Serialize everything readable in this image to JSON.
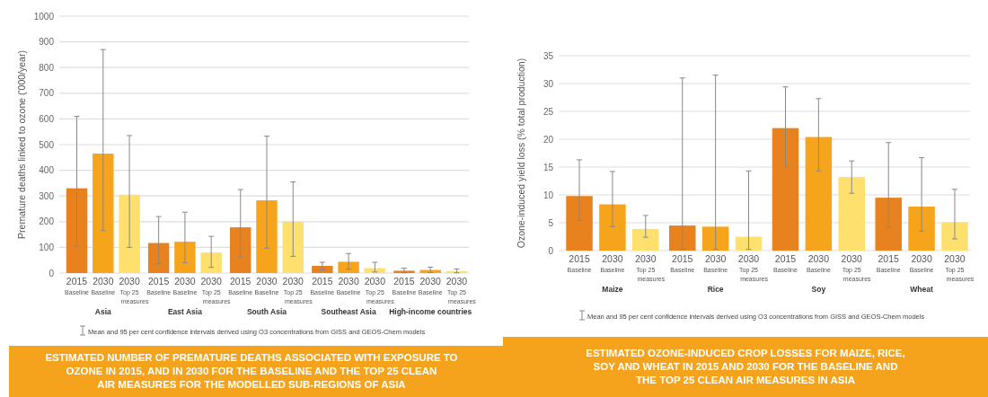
{
  "chart_data": [
    {
      "type": "bar",
      "title": "ESTIMATED NUMBER OF PREMATURE DEATHS ASSOCIATED WITH EXPOSURE TO OZONE IN 2015, AND IN 2030 FOR THE BASELINE AND THE TOP 25 CLEAN AIR MEASURES FOR THE MODELLED SUB-REGIONS OF ASIA",
      "ylabel": "Premature deaths linked to ozone ('000/year)",
      "categories": [
        "Asia",
        "East Asia",
        "South Asia",
        "Southeast Asia",
        "High-income countries"
      ],
      "series": [
        {
          "name": "2015 Baseline",
          "color": "#e8821e",
          "values": [
            330,
            117,
            178,
            28,
            9
          ],
          "errors": [
            [
              105,
              610
            ],
            [
              35,
              220
            ],
            [
              60,
              325
            ],
            [
              12,
              42
            ],
            [
              1,
              19
            ]
          ]
        },
        {
          "name": "2030 Baseline",
          "color": "#f7a41d",
          "values": [
            465,
            122,
            283,
            44,
            12
          ],
          "errors": [
            [
              165,
              870
            ],
            [
              40,
              237
            ],
            [
              97,
              533
            ],
            [
              15,
              76
            ],
            [
              2,
              23
            ]
          ]
        },
        {
          "name": "2030 Top 25 measures",
          "color": "#fde06e",
          "values": [
            305,
            80,
            200,
            19,
            7
          ],
          "errors": [
            [
              100,
              535
            ],
            [
              22,
              143
            ],
            [
              65,
              355
            ],
            [
              4,
              42
            ],
            [
              1,
              16
            ]
          ]
        }
      ],
      "ylim": [
        0,
        1000
      ],
      "yticks": [
        0,
        100,
        200,
        300,
        400,
        500,
        600,
        700,
        800,
        900,
        1000
      ],
      "grid": "y",
      "annotations": [
        "Mean and 95 per cent confidence intervals derived using O3 concentrations from GISS and GEOS-Chem models"
      ]
    },
    {
      "type": "bar",
      "title": "ESTIMATED OZONE-INDUCED CROP LOSSES FOR MAIZE, RICE, SOY AND WHEAT IN 2015 AND 2030 FOR THE BASELINE AND THE TOP 25 CLEAN AIR MEASURES IN ASIA",
      "ylabel": "Ozone-induced yield loss (% total production)",
      "categories": [
        "Maize",
        "Rice",
        "Soy",
        "Wheat"
      ],
      "series": [
        {
          "name": "2015 Baseline",
          "color": "#e8821e",
          "values": [
            9.8,
            4.5,
            22.0,
            9.5
          ],
          "errors": [
            [
              5.4,
              16.3
            ],
            [
              0.2,
              31.0
            ],
            [
              15.1,
              29.4
            ],
            [
              4.1,
              19.4
            ]
          ]
        },
        {
          "name": "2030 Baseline",
          "color": "#f7a41d",
          "values": [
            8.3,
            4.3,
            20.4,
            7.9
          ],
          "errors": [
            [
              4.3,
              14.2
            ],
            [
              0.2,
              31.5
            ],
            [
              14.3,
              27.3
            ],
            [
              3.5,
              16.7
            ]
          ]
        },
        {
          "name": "2030 Top 25 measures",
          "color": "#fde06e",
          "values": [
            3.9,
            2.5,
            13.2,
            5.1
          ],
          "errors": [
            [
              2.4,
              6.3
            ],
            [
              0.2,
              14.3
            ],
            [
              10.3,
              16.1
            ],
            [
              2.1,
              11.0
            ]
          ]
        }
      ],
      "ylim": [
        0,
        35
      ],
      "yticks": [
        0,
        5,
        10,
        15,
        20,
        25,
        30,
        35
      ],
      "grid": "y",
      "annotations": [
        "Mean and 95 per cent confidence intervals derived using O3 concentrations from GISS and GEOS-Chem models"
      ]
    }
  ]
}
